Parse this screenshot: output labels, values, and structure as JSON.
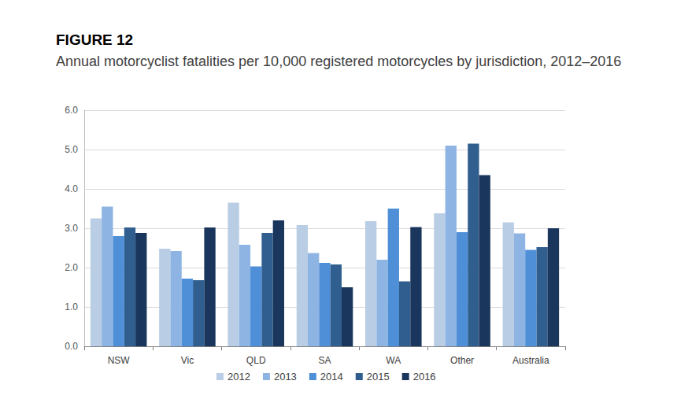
{
  "chart_data": {
    "type": "bar",
    "title": "FIGURE 12",
    "subtitle": "Annual motorcyclist fatalities per 10,000 registered motorcycles by jurisdiction, 2012–2016",
    "categories": [
      "NSW",
      "Vic",
      "QLD",
      "SA",
      "WA",
      "Other",
      "Australia"
    ],
    "series": [
      {
        "name": "2012",
        "color": "#b9cde5",
        "values": [
          3.25,
          2.48,
          3.65,
          3.08,
          3.18,
          3.38,
          3.15
        ]
      },
      {
        "name": "2013",
        "color": "#8eb4e3",
        "values": [
          3.55,
          2.42,
          2.58,
          2.37,
          2.2,
          5.1,
          2.87
        ]
      },
      {
        "name": "2014",
        "color": "#4e8fd8",
        "values": [
          2.8,
          1.72,
          2.03,
          2.12,
          3.5,
          2.9,
          2.45
        ]
      },
      {
        "name": "2015",
        "color": "#2f5e8f",
        "values": [
          3.02,
          1.68,
          2.88,
          2.08,
          1.65,
          5.15,
          2.52
        ]
      },
      {
        "name": "2016",
        "color": "#1b365d",
        "values": [
          2.88,
          3.02,
          3.2,
          1.5,
          3.03,
          4.35,
          3.0
        ]
      }
    ],
    "ylim": [
      0,
      6
    ],
    "yticks": [
      {
        "value": 0,
        "label": "0.0"
      },
      {
        "value": 1,
        "label": "1.0"
      },
      {
        "value": 2,
        "label": "2.0"
      },
      {
        "value": 3,
        "label": "3.0"
      },
      {
        "value": 4,
        "label": "4.0"
      },
      {
        "value": 5,
        "label": "5.0"
      },
      {
        "value": 6,
        "label": "6.0"
      }
    ],
    "grid": true,
    "legend": "bottom"
  }
}
